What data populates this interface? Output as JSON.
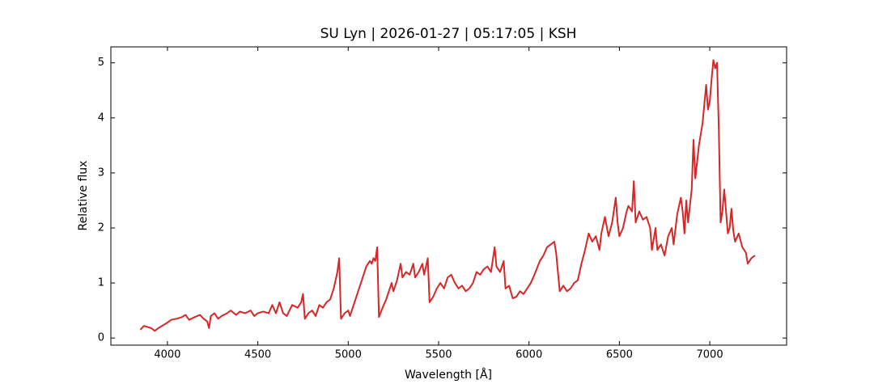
{
  "chart_data": {
    "type": "line",
    "title": "SU Lyn | 2026-01-27 | 05:17:05 | KSH",
    "x_label": "Wavelength [Å]",
    "y_label": "Relative flux",
    "xlim": [
      3687,
      7425
    ],
    "ylim": [
      -0.13,
      5.29
    ],
    "xticks": [
      4000,
      4500,
      5000,
      5500,
      6000,
      6500,
      7000
    ],
    "yticks": [
      0,
      1,
      2,
      3,
      4,
      5
    ],
    "series": [
      {
        "name": "flux",
        "color": "#d62728",
        "x": [
          3850,
          3870,
          3890,
          3910,
          3930,
          3950,
          3970,
          4000,
          4020,
          4050,
          4080,
          4100,
          4120,
          4150,
          4180,
          4200,
          4220,
          4230,
          4240,
          4260,
          4280,
          4300,
          4330,
          4350,
          4380,
          4400,
          4430,
          4460,
          4480,
          4500,
          4530,
          4560,
          4580,
          4600,
          4620,
          4640,
          4660,
          4690,
          4720,
          4740,
          4750,
          4760,
          4780,
          4800,
          4820,
          4840,
          4860,
          4880,
          4900,
          4920,
          4940,
          4950,
          4960,
          4980,
          5000,
          5010,
          5030,
          5060,
          5080,
          5100,
          5120,
          5130,
          5140,
          5150,
          5160,
          5170,
          5190,
          5210,
          5230,
          5240,
          5250,
          5270,
          5290,
          5300,
          5320,
          5340,
          5360,
          5370,
          5390,
          5410,
          5420,
          5440,
          5450,
          5470,
          5490,
          5510,
          5530,
          5550,
          5570,
          5590,
          5610,
          5630,
          5650,
          5670,
          5690,
          5710,
          5730,
          5750,
          5770,
          5790,
          5810,
          5820,
          5840,
          5860,
          5870,
          5890,
          5910,
          5930,
          5950,
          5970,
          5990,
          6010,
          6030,
          6060,
          6080,
          6100,
          6120,
          6140,
          6150,
          6170,
          6190,
          6210,
          6230,
          6250,
          6270,
          6290,
          6310,
          6330,
          6350,
          6370,
          6390,
          6400,
          6420,
          6440,
          6460,
          6480,
          6490,
          6500,
          6520,
          6540,
          6550,
          6570,
          6580,
          6590,
          6610,
          6630,
          6650,
          6670,
          6680,
          6700,
          6710,
          6730,
          6750,
          6770,
          6790,
          6800,
          6820,
          6840,
          6850,
          6860,
          6870,
          6880,
          6900,
          6910,
          6920,
          6940,
          6960,
          6980,
          6990,
          7000,
          7010,
          7020,
          7030,
          7040,
          7050,
          7060,
          7070,
          7080,
          7100,
          7110,
          7120,
          7130,
          7140,
          7160,
          7180,
          7200,
          7210,
          7230,
          7250
        ],
        "values": [
          0.15,
          0.22,
          0.2,
          0.18,
          0.13,
          0.18,
          0.22,
          0.28,
          0.33,
          0.35,
          0.38,
          0.42,
          0.33,
          0.38,
          0.42,
          0.35,
          0.3,
          0.18,
          0.4,
          0.45,
          0.35,
          0.4,
          0.45,
          0.5,
          0.42,
          0.48,
          0.45,
          0.5,
          0.4,
          0.45,
          0.48,
          0.45,
          0.6,
          0.45,
          0.65,
          0.45,
          0.4,
          0.6,
          0.55,
          0.65,
          0.8,
          0.35,
          0.45,
          0.5,
          0.4,
          0.6,
          0.55,
          0.65,
          0.7,
          0.9,
          1.2,
          1.45,
          0.35,
          0.45,
          0.5,
          0.4,
          0.6,
          0.9,
          1.1,
          1.3,
          1.4,
          1.35,
          1.45,
          1.4,
          1.65,
          0.38,
          0.55,
          0.7,
          0.9,
          1.0,
          0.85,
          1.05,
          1.35,
          1.1,
          1.2,
          1.15,
          1.35,
          1.1,
          1.2,
          1.35,
          1.15,
          1.45,
          0.65,
          0.75,
          0.9,
          1.0,
          0.9,
          1.1,
          1.15,
          1.0,
          0.9,
          0.95,
          0.85,
          0.9,
          1.0,
          1.2,
          1.15,
          1.25,
          1.3,
          1.2,
          1.65,
          1.3,
          1.2,
          1.4,
          0.9,
          0.95,
          0.72,
          0.75,
          0.85,
          0.8,
          0.9,
          1.0,
          1.15,
          1.4,
          1.5,
          1.65,
          1.7,
          1.75,
          1.55,
          0.85,
          0.95,
          0.85,
          0.9,
          1.0,
          1.05,
          1.35,
          1.6,
          1.9,
          1.75,
          1.85,
          1.6,
          1.9,
          2.2,
          1.85,
          2.1,
          2.55,
          2.1,
          1.85,
          2.0,
          2.3,
          2.4,
          2.3,
          2.85,
          2.1,
          2.3,
          2.15,
          2.2,
          2.0,
          1.6,
          2.0,
          1.6,
          1.7,
          1.5,
          1.85,
          2.0,
          1.7,
          2.25,
          2.55,
          2.3,
          1.9,
          2.5,
          2.1,
          2.7,
          3.6,
          2.9,
          3.5,
          3.9,
          4.6,
          4.15,
          4.3,
          4.7,
          5.05,
          4.9,
          5.0,
          3.8,
          2.1,
          2.3,
          2.7,
          1.9,
          2.0,
          2.35,
          1.95,
          1.75,
          1.9,
          1.65,
          1.55,
          1.35,
          1.45,
          1.5
        ]
      }
    ]
  }
}
